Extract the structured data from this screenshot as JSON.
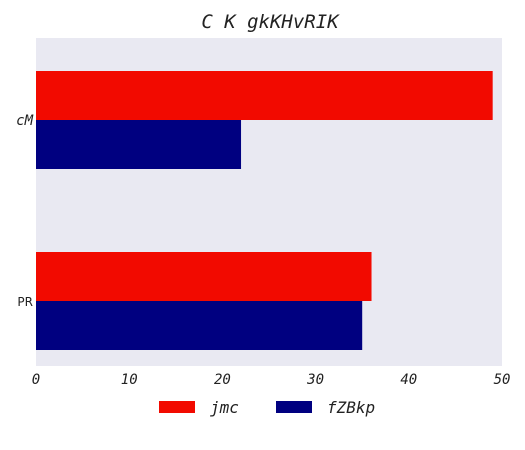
{
  "chart_data": {
    "type": "bar",
    "orientation": "horizontal",
    "title": "C K gkKHvRIK",
    "xlabel": "",
    "ylabel": "",
    "categories": [
      "cM",
      "PR"
    ],
    "series": [
      {
        "name": "jmc",
        "values": [
          49,
          36
        ],
        "color": "#f20a00"
      },
      {
        "name": "fZBkp",
        "values": [
          22,
          35
        ],
        "color": "#000080"
      }
    ],
    "xlim": [
      0,
      50
    ],
    "xticks": [
      "0",
      "10",
      "20",
      "30",
      "40",
      "50"
    ],
    "grid": false,
    "plot_background": "#e9e9f2",
    "legend_position": "bottom"
  }
}
